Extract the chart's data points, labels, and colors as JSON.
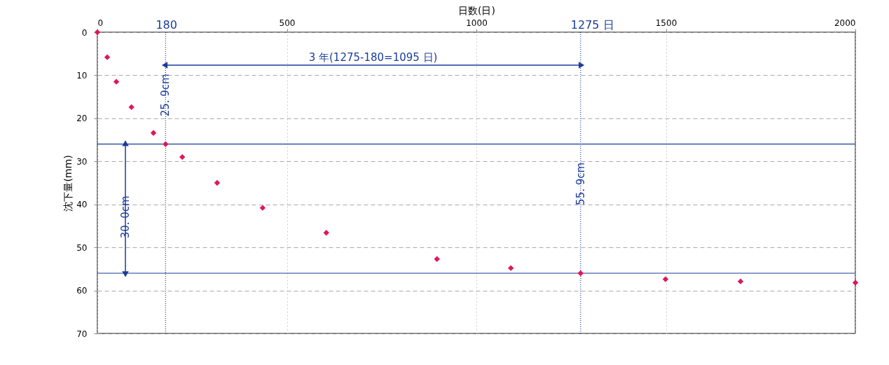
{
  "chart_data": {
    "type": "scatter",
    "xlabel": "日数(日)",
    "ylabel": "沈下量(mm)",
    "x": [
      0,
      26,
      50,
      90,
      148,
      180,
      224,
      316,
      436,
      604,
      896,
      1091,
      1275,
      1499,
      1697,
      2000
    ],
    "series": [
      {
        "color": "#e0175a",
        "values": [
          0,
          5.8,
          11.5,
          17.4,
          23.4,
          26,
          29,
          35,
          40.8,
          46.6,
          52.7,
          54.8,
          56,
          57.4,
          57.9,
          58.2
        ]
      }
    ],
    "marker": "diamond",
    "grid": true,
    "xlim": [
      0,
      2000
    ],
    "xticks": [
      0,
      500,
      1000,
      1500,
      2000
    ],
    "ylim": [
      70,
      0
    ],
    "yticks": [
      0,
      10,
      20,
      30,
      40,
      50,
      60,
      70
    ],
    "ref_lines": [
      {
        "axis": "x",
        "value": 180,
        "label": "180",
        "color": "#1a3d9a",
        "line_style": "dotted"
      },
      {
        "axis": "x",
        "value": 1275,
        "label": "1275 日",
        "color": "#1a3d9a",
        "line_style": "dotted"
      },
      {
        "axis": "y",
        "value": 26,
        "label": null,
        "color": "#1a3d9a",
        "line_style": "solid"
      },
      {
        "axis": "y",
        "value": 56,
        "label": null,
        "color": "#1a3d9a",
        "line_style": "solid"
      }
    ],
    "annotations": [
      "3 年(1275-180=1095 日)",
      "25. 9cm",
      "30. 0cm",
      "55. 9cm"
    ]
  }
}
